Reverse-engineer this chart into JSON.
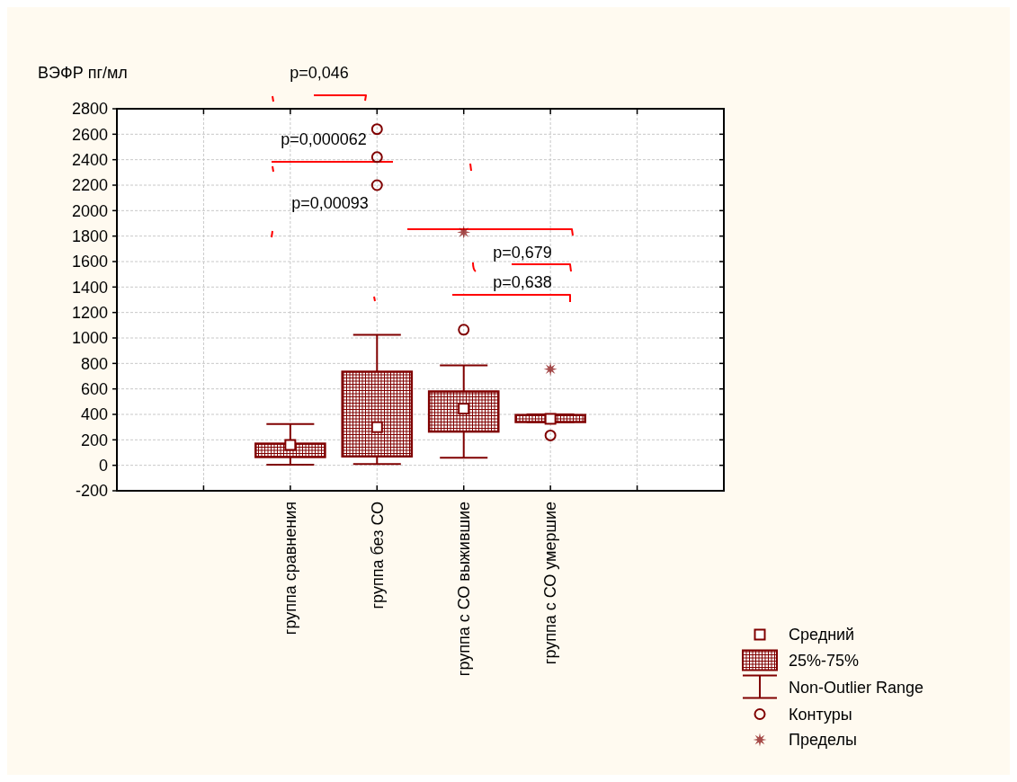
{
  "chart_data": {
    "type": "box",
    "ylabel": "ВЭФР пг/мл",
    "categories": [
      null,
      "группа сравнения",
      "группа без СО",
      "группа с СО выжившие",
      "группа с СО умершие",
      null
    ],
    "series": [
      {
        "name": "Средний",
        "type": "scatter",
        "marker": "square",
        "color": "#800000",
        "x": [
          "группа сравнения",
          "группа без СО",
          "группа с СО выжившие",
          "группа с СО умершие"
        ],
        "values": [
          160,
          300,
          445,
          365
        ]
      },
      {
        "name": "25%-75%",
        "type": "box",
        "color": "#800000",
        "boxes": [
          null,
          {
            "low": 5,
            "q1": 65,
            "median": null,
            "q3": 170,
            "high": 325
          },
          {
            "low": 10,
            "q1": 70,
            "median": null,
            "q3": 735,
            "high": 1025
          },
          {
            "low": 60,
            "q1": 265,
            "median": null,
            "q3": 580,
            "high": 785
          },
          {
            "low": 340,
            "q1": 340,
            "median": null,
            "q3": 395,
            "high": 400
          },
          null
        ]
      },
      {
        "name": "Контуры",
        "type": "scatter",
        "marker": "circle",
        "color": "#800000",
        "x": [
          "группа без СО",
          "группа без СО",
          "группа без СО",
          "группа с СО выжившие",
          "группа с СО умершие"
        ],
        "values": [
          2640,
          2420,
          2200,
          1065,
          235
        ]
      },
      {
        "name": "Пределы",
        "type": "scatter",
        "marker": "star",
        "color": "#800000",
        "x": [
          "группа с СО выжившие",
          "группа с СО умершие"
        ],
        "values": [
          1830,
          755
        ]
      }
    ],
    "ylim": [
      -200,
      2800
    ],
    "yticks": [
      -200,
      0,
      200,
      400,
      600,
      800,
      1000,
      1200,
      1400,
      1600,
      1800,
      2000,
      2200,
      2400,
      2600,
      2800
    ],
    "grid": true,
    "legend": "bottom right",
    "annotations": [
      "p=0,046",
      "p=0,000062",
      "p=0,00093",
      "p=0,679",
      "p=0,638",
      "Non-Outlier Range"
    ]
  }
}
